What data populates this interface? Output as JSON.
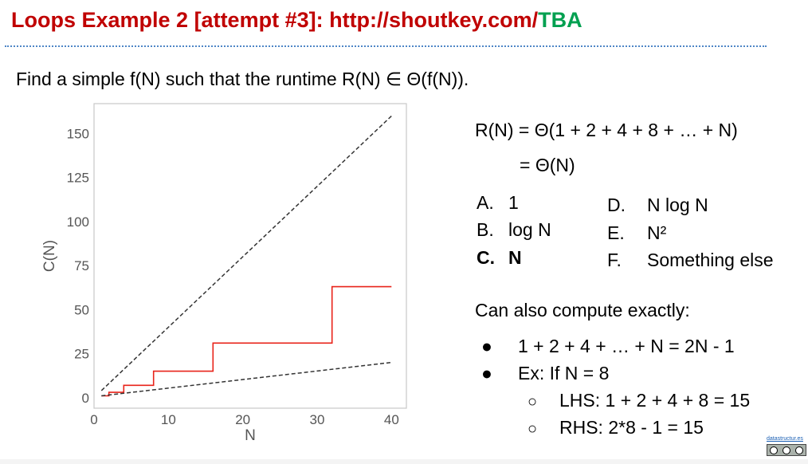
{
  "slide": {
    "title_main": "Loops Example 2 [attempt #3]: http://shoutkey.com/",
    "title_highlight": "TBA",
    "prompt": "Find a simple f(N) such that the runtime R(N) ∈ Θ(f(N)).",
    "equation_line1": "R(N) = Θ(1 + 2 + 4 + 8 + … + N)",
    "equation_line2": "= Θ(N)",
    "options": [
      {
        "letter": "A.",
        "text": "1"
      },
      {
        "letter": "B.",
        "text": "log N"
      },
      {
        "letter": "C.",
        "text": "N"
      },
      {
        "letter": "D.",
        "text": "N log N"
      },
      {
        "letter": "E.",
        "text": "N²"
      },
      {
        "letter": "F.",
        "text": "Something else"
      }
    ],
    "exact_title": "Can also compute exactly:",
    "bullets": [
      "1 + 2 + 4 + … + N = 2N - 1",
      "Ex: If N = 8"
    ],
    "sub_bullets": [
      "LHS: 1 + 2 + 4 + 8 = 15",
      "RHS: 2*8 - 1 = 15"
    ],
    "bullet_glyph": "●",
    "sub_bullet_glyph": "○",
    "credit": "datastructur.es",
    "colors": {
      "title": "#c00000",
      "highlight": "#00a050",
      "step": "#e8231a",
      "reference": "#333333"
    }
  },
  "chart_data": {
    "type": "line",
    "xlabel": "N",
    "ylabel": "C(N)",
    "xlim": [
      0,
      42
    ],
    "ylim": [
      -6,
      167
    ],
    "xticks": [
      0,
      10,
      20,
      30,
      40
    ],
    "yticks": [
      0,
      25,
      50,
      75,
      100,
      125,
      150
    ],
    "grid": false,
    "series": [
      {
        "style": "step",
        "color": "#e8231a",
        "x": [
          1,
          2,
          2,
          4,
          4,
          8,
          8,
          16,
          16,
          32,
          32,
          40
        ],
        "y": [
          1,
          1,
          3,
          3,
          7,
          7,
          15,
          15,
          31,
          31,
          63,
          63
        ]
      },
      {
        "style": "dashed",
        "color": "#333333",
        "x": [
          1,
          40
        ],
        "y": [
          4,
          160
        ]
      },
      {
        "style": "dashed",
        "color": "#333333",
        "x": [
          1,
          40
        ],
        "y": [
          1,
          20
        ]
      }
    ]
  }
}
